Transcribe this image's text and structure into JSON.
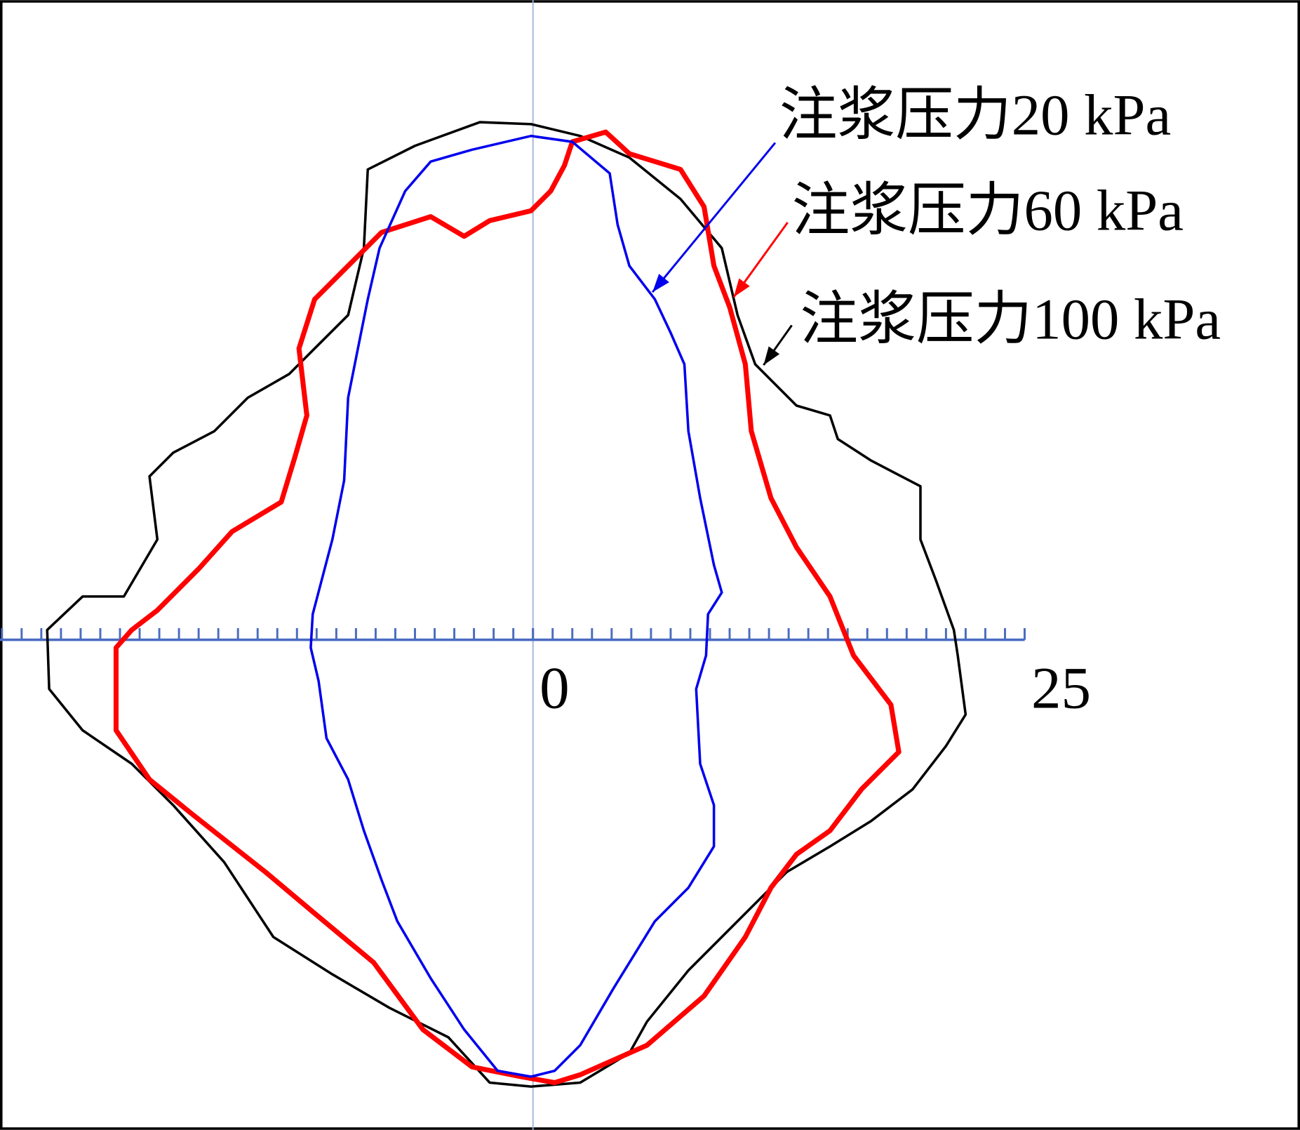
{
  "chart_data": {
    "type": "line",
    "xlim": [
      -27.1,
      39.0
    ],
    "ylim": [
      -24.9,
      32.5
    ],
    "xticks": [
      0,
      25
    ],
    "x_minor_step": 1,
    "axis_color": "#4a6cc0",
    "series": [
      {
        "name": "注浆压力20 kPa",
        "color": "#0000ee",
        "width": 3,
        "x": [
          -0.1,
          2.0,
          3.9,
          4.3,
          4.9,
          6.2,
          7.0,
          7.7,
          7.9,
          8.5,
          9.2,
          9.6,
          8.9,
          8.8,
          8.3,
          8.5,
          9.2,
          9.2,
          7.9,
          6.2,
          4.1,
          2.4,
          1.1,
          -0.1,
          -1.8,
          -3.5,
          -5.2,
          -6.9,
          -7.7,
          -8.6,
          -9.4,
          -10.5,
          -10.9,
          -11.3,
          -11.2,
          -10.2,
          -9.6,
          -9.4,
          -8.9,
          -8.4,
          -7.8,
          -6.5,
          -5.2,
          -3.1
        ],
        "values": [
          25.6,
          25.3,
          23.7,
          21.1,
          19.0,
          17.3,
          15.6,
          14.0,
          10.6,
          7.2,
          3.8,
          2.4,
          1.3,
          -0.8,
          -2.5,
          -6.3,
          -8.4,
          -10.5,
          -12.6,
          -14.3,
          -17.7,
          -20.6,
          -21.9,
          -22.2,
          -21.9,
          -19.8,
          -17.2,
          -14.3,
          -12.2,
          -9.7,
          -7.1,
          -5.0,
          -2.1,
          -0.4,
          1.3,
          5.1,
          8.1,
          12.3,
          14.8,
          17.3,
          19.9,
          22.8,
          24.3,
          24.9
        ]
      },
      {
        "name": "注浆压力60 kPa",
        "color": "#ff0000",
        "width": 6,
        "x": [
          2.0,
          3.7,
          4.9,
          7.5,
          8.7,
          9.2,
          10.0,
          10.8,
          11.1,
          12.1,
          13.4,
          15.1,
          16.3,
          18.2,
          18.6,
          16.7,
          15.1,
          13.4,
          12.1,
          10.8,
          8.7,
          5.8,
          2.4,
          1.1,
          -0.6,
          -3.1,
          -5.6,
          -8.1,
          -11.1,
          -13.6,
          -17.4,
          -19.5,
          -21.2,
          -21.2,
          -20.4,
          -19.1,
          -17.0,
          -15.3,
          -12.8,
          -12.1,
          -11.5,
          -11.9,
          -11.1,
          -9.4,
          -7.7,
          -5.2,
          -3.5,
          -2.2,
          -0.1,
          0.9,
          1.6
        ],
        "values": [
          25.3,
          25.8,
          24.7,
          23.9,
          22.0,
          19.0,
          16.9,
          14.0,
          10.6,
          7.2,
          4.7,
          2.2,
          -0.8,
          -3.3,
          -5.7,
          -7.6,
          -9.7,
          -10.9,
          -12.6,
          -15.1,
          -18.1,
          -20.6,
          -22.1,
          -22.5,
          -22.2,
          -21.7,
          -19.8,
          -16.4,
          -13.9,
          -11.8,
          -8.8,
          -7.1,
          -4.6,
          -0.4,
          0.5,
          1.5,
          3.6,
          5.5,
          7.0,
          9.3,
          11.4,
          14.8,
          17.3,
          19.0,
          20.7,
          21.5,
          20.5,
          21.3,
          21.8,
          22.8,
          24.1
        ]
      },
      {
        "name": "注浆压力100 kPa",
        "color": "#000000",
        "width": 3,
        "x": [
          -2.7,
          -0.1,
          2.4,
          4.9,
          7.5,
          9.6,
          10.4,
          11.3,
          13.4,
          15.1,
          15.5,
          17.2,
          19.7,
          19.7,
          20.5,
          21.4,
          21.6,
          22.0,
          21.0,
          19.3,
          17.2,
          15.1,
          12.9,
          10.8,
          7.9,
          5.8,
          4.9,
          2.4,
          -0.1,
          -2.2,
          -4.3,
          -7.3,
          -10.2,
          -13.2,
          -15.7,
          -18.3,
          -20.4,
          -22.9,
          -24.6,
          -24.7,
          -22.9,
          -20.8,
          -19.1,
          -19.5,
          -18.3,
          -16.2,
          -14.5,
          -12.4,
          -11.1,
          -9.4,
          -8.6,
          -8.4,
          -6.0
        ],
        "values": [
          26.3,
          26.2,
          25.6,
          24.5,
          22.4,
          19.9,
          16.5,
          14.0,
          11.9,
          11.4,
          10.2,
          9.1,
          7.8,
          5.1,
          3.0,
          0.5,
          -0.8,
          -3.8,
          -5.4,
          -7.6,
          -9.2,
          -10.5,
          -11.8,
          -13.9,
          -16.8,
          -19.4,
          -21.0,
          -22.5,
          -22.7,
          -22.5,
          -20.2,
          -18.7,
          -17.0,
          -15.1,
          -11.3,
          -8.4,
          -6.3,
          -4.6,
          -2.5,
          0.5,
          2.2,
          2.2,
          5.1,
          8.3,
          9.5,
          10.6,
          12.3,
          13.5,
          14.8,
          16.5,
          19.9,
          23.9,
          25.1
        ]
      }
    ]
  }
}
